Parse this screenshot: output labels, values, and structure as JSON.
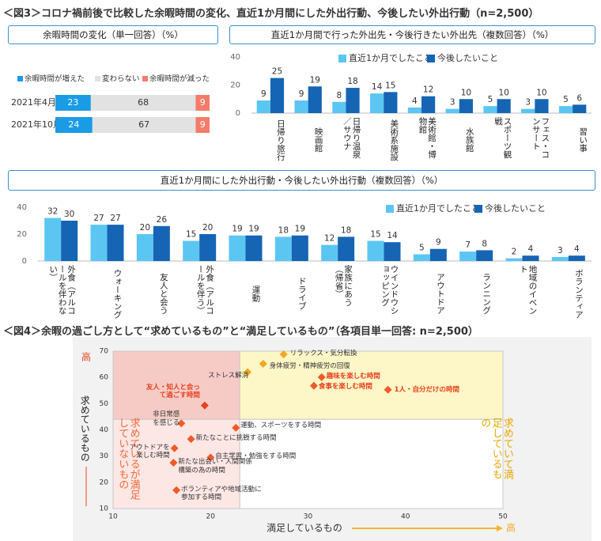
{
  "figure3_title": "＜図3＞コロナ禍前後で比較した余暇時間の変化、直近1か月間にした外出行動、今後したい外出行動（n=2,500）",
  "figure4_title": "＜図4＞余暇の過ごし方として“求めているもの”と“満足しているもの”（各項目単一回答: n=2,500）",
  "chart_data": [
    {
      "type": "hbar-stacked",
      "title": "余暇時間の変化（単一回答）（%）",
      "categories": [
        "2021年4月",
        "2021年10月"
      ],
      "series": [
        {
          "name": "余暇時間が増えた",
          "color": "#1a9be6",
          "values": [
            23,
            24
          ]
        },
        {
          "name": "変わらない",
          "color": "#e2e2e2",
          "values": [
            68,
            67
          ]
        },
        {
          "name": "余暇時間が減った",
          "color": "#f47c6a",
          "values": [
            9,
            9
          ]
        }
      ],
      "xlim": [
        0,
        100
      ],
      "legend": "top"
    },
    {
      "type": "bar",
      "title": "直近1か月間で行った外出先・今後行きたい外出先（複数回答）（%）",
      "categories": [
        "日帰り旅行",
        "映画館",
        "日帰り温泉／サウナ",
        "美術系施設",
        "美術館・博物館",
        "水族館",
        "スポーツ観戦",
        "フェス・コンサート",
        "習い事"
      ],
      "series": [
        {
          "name": "直近1か月でしたこと",
          "color": "#5cc6f2",
          "values": [
            9,
            9,
            8,
            14,
            4,
            3,
            5,
            3,
            5
          ]
        },
        {
          "name": "今後したいこと",
          "color": "#1565b4",
          "values": [
            25,
            19,
            18,
            15,
            12,
            10,
            10,
            10,
            6
          ]
        }
      ],
      "ylim": [
        0,
        40
      ],
      "yticks": [
        0,
        20,
        40
      ],
      "legend": "top-right"
    },
    {
      "type": "bar",
      "title": "直近1か月間にした外出行動・今後したい外出行動（複数回答）（%）",
      "categories": [
        "外食（アルコールを伴わない）",
        "ウォーキング",
        "友人と会う",
        "外食（アルコールを伴う）",
        "運動",
        "ドライブ",
        "家族にあう（帰省）",
        "ウインドウショッピング",
        "アウトドア",
        "ランニング",
        "地域のイベント",
        "ボランティア"
      ],
      "series": [
        {
          "name": "直近1か月でしたこと",
          "color": "#5cc6f2",
          "values": [
            32,
            27,
            20,
            15,
            19,
            18,
            12,
            15,
            5,
            7,
            2,
            3
          ]
        },
        {
          "name": "今後したいこと",
          "color": "#1565b4",
          "values": [
            30,
            27,
            26,
            20,
            19,
            19,
            18,
            14,
            9,
            8,
            4,
            4
          ]
        }
      ],
      "ylim": [
        0,
        40
      ],
      "yticks": [
        0,
        20,
        40
      ],
      "legend": "top-right"
    },
    {
      "type": "scatter",
      "x_label": "満足しているもの",
      "y_label": "求めているもの",
      "x_high_label": "高",
      "y_high_label": "高",
      "xlim": [
        10,
        50
      ],
      "ylim": [
        10,
        70
      ],
      "xticks": [
        10,
        20,
        30,
        40,
        50
      ],
      "yticks": [
        10,
        20,
        30,
        40,
        50,
        60,
        70
      ],
      "quadrant_split": {
        "x": 23,
        "y": 44
      },
      "quadrant_labels": {
        "bottom_left": "求めているが満足していないもの",
        "bottom_right": "求めていて満足しているもの"
      },
      "points": [
        {
          "label": "リラックス・気分転換",
          "x": 27.5,
          "y": 68.8,
          "color": "#f5a623",
          "label_color": "#333333"
        },
        {
          "label": "身体疲労・精神疲労の回復",
          "x": 25.4,
          "y": 65.2,
          "color": "#f5a623",
          "label_color": "#333333"
        },
        {
          "label": "ストレス解消",
          "x": 23.8,
          "y": 62,
          "color": "#f5a623",
          "label_color": "#333333"
        },
        {
          "label": "趣味を楽しむ時間",
          "x": 31.4,
          "y": 60.1,
          "color": "#f05a28",
          "label_color": "#e8401c"
        },
        {
          "label": "食事を楽しむ時間",
          "x": 30.6,
          "y": 56.8,
          "color": "#f05a28",
          "label_color": "#e8401c"
        },
        {
          "label": "1人・自分だけの時間",
          "x": 38.2,
          "y": 55.3,
          "color": "#f05a28",
          "label_color": "#e8401c"
        },
        {
          "label": "友人・知人と会って過ごす時間",
          "x": 19.4,
          "y": 49.3,
          "color": "#e8401c",
          "label_color": "#e8401c"
        },
        {
          "label": "非日常感を感じる",
          "x": 17,
          "y": 42.5,
          "color": "#f05a28",
          "label_color": "#333333"
        },
        {
          "label": "運動、スポーツをする時間",
          "x": 22.6,
          "y": 40.8,
          "color": "#f05a28",
          "label_color": "#333333"
        },
        {
          "label": "アウトドアを楽しむ時間",
          "x": 16.3,
          "y": 33,
          "color": "#f05a28",
          "label_color": "#333333"
        },
        {
          "label": "新たなことに挑戦する時間",
          "x": 18,
          "y": 36.5,
          "color": "#f05a28",
          "label_color": "#333333"
        },
        {
          "label": "自主学習・勉強をする時間",
          "x": 20,
          "y": 29.5,
          "color": "#f05a28",
          "label_color": "#333333"
        },
        {
          "label": "新たな出会い・人間関係構築の為の時間",
          "x": 16.2,
          "y": 27.5,
          "color": "#f05a28",
          "label_color": "#333333"
        },
        {
          "label": "ボランティアや地域活動に参加する時間",
          "x": 16.5,
          "y": 17,
          "color": "#f05a28",
          "label_color": "#333333"
        }
      ]
    }
  ]
}
